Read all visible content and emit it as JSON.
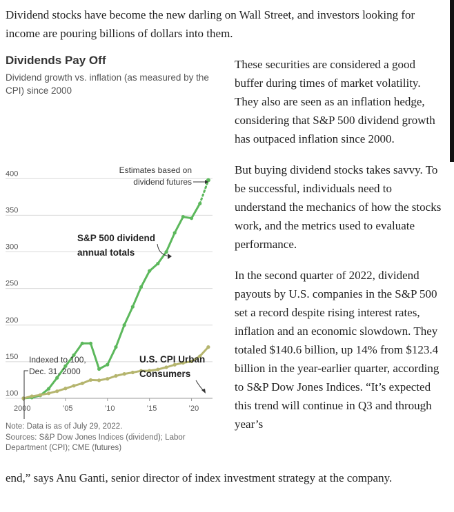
{
  "article": {
    "intro": "Dividend stocks have become the new darling on Wall Street, and investors looking for income are pouring billions of dollars into them.",
    "paragraphs": [
      "These securities are considered a good buffer during times of market volatility. They also are seen as an inflation hedge, considering that S&P 500 dividend growth has outpaced inflation since 2000.",
      "But buying dividend stocks takes savvy. To be successful, individuals need to understand the mechanics of how the stocks work, and the metrics used to evaluate performance.",
      "In the second quarter of 2022, dividend payouts by U.S. companies in the S&P 500 set a record despite rising interest rates, inflation and an economic slowdown. They totaled $140.6 billion, up 14% from $123.4 billion in the year-earlier quarter, according to S&P Dow Jones Indices. “It’s expected this trend will continue in Q3 and through year’s"
    ],
    "tail": "end,” says Anu Ganti, senior director of index investment strategy at the company."
  },
  "chart_data": {
    "type": "line",
    "title": "Dividends Pay Off",
    "subtitle": "Dividend growth vs. inflation (as measured by the CPI) since 2000",
    "y_ticks": [
      100,
      150,
      200,
      250,
      300,
      350,
      400
    ],
    "y_tick_labels": [
      "100",
      "150",
      "200",
      "250",
      "300",
      "350",
      "400"
    ],
    "x_ticks": [
      2000,
      2005,
      2010,
      2015,
      2020
    ],
    "x_tick_labels": [
      "2000",
      "’05",
      "’10",
      "’15",
      "’20"
    ],
    "ylim": [
      100,
      405
    ],
    "xlim": [
      2000,
      2022.5
    ],
    "series": [
      {
        "name": "S&P 500 dividend annual totals",
        "color": "#5cb85c",
        "x": [
          2000,
          2001,
          2002,
          2003,
          2004,
          2005,
          2006,
          2007,
          2008,
          2009,
          2010,
          2011,
          2012,
          2013,
          2014,
          2015,
          2016,
          2017,
          2018,
          2019,
          2020,
          2021
        ],
        "values": [
          100,
          101,
          104,
          113,
          128,
          144,
          159,
          175,
          175,
          140,
          146,
          170,
          200,
          225,
          252,
          274,
          284,
          300,
          326,
          348,
          346,
          366
        ],
        "projection": {
          "x": [
            2021,
            2022
          ],
          "values": [
            366,
            398
          ]
        }
      },
      {
        "name": "U.S. CPI Urban Consumers",
        "color": "#b5b56e",
        "x": [
          2000,
          2001,
          2002,
          2003,
          2004,
          2005,
          2006,
          2007,
          2008,
          2009,
          2010,
          2011,
          2012,
          2013,
          2014,
          2015,
          2016,
          2017,
          2018,
          2019,
          2020,
          2021,
          2022
        ],
        "values": [
          100,
          102.8,
          104.5,
          106.8,
          109.7,
          113.4,
          117.1,
          120.4,
          125,
          124.6,
          126.6,
          130.6,
          133.3,
          135.3,
          137.5,
          137.7,
          139.4,
          142.4,
          145.8,
          148.5,
          150.4,
          157.5,
          170
        ]
      }
    ],
    "annotations": {
      "estimates": "Estimates based on dividend futures",
      "indexed": "Indexed to 100, Dec. 31, 2000",
      "sp_label": "S&P 500 dividend annual totals",
      "cpi_label": "U.S. CPI Urban Consumers"
    },
    "grid": true,
    "note": "Note: Data is as of July 29, 2022.",
    "sources": "Sources: S&P Dow Jones Indices (dividend); Labor Department (CPI); CME (futures)"
  }
}
